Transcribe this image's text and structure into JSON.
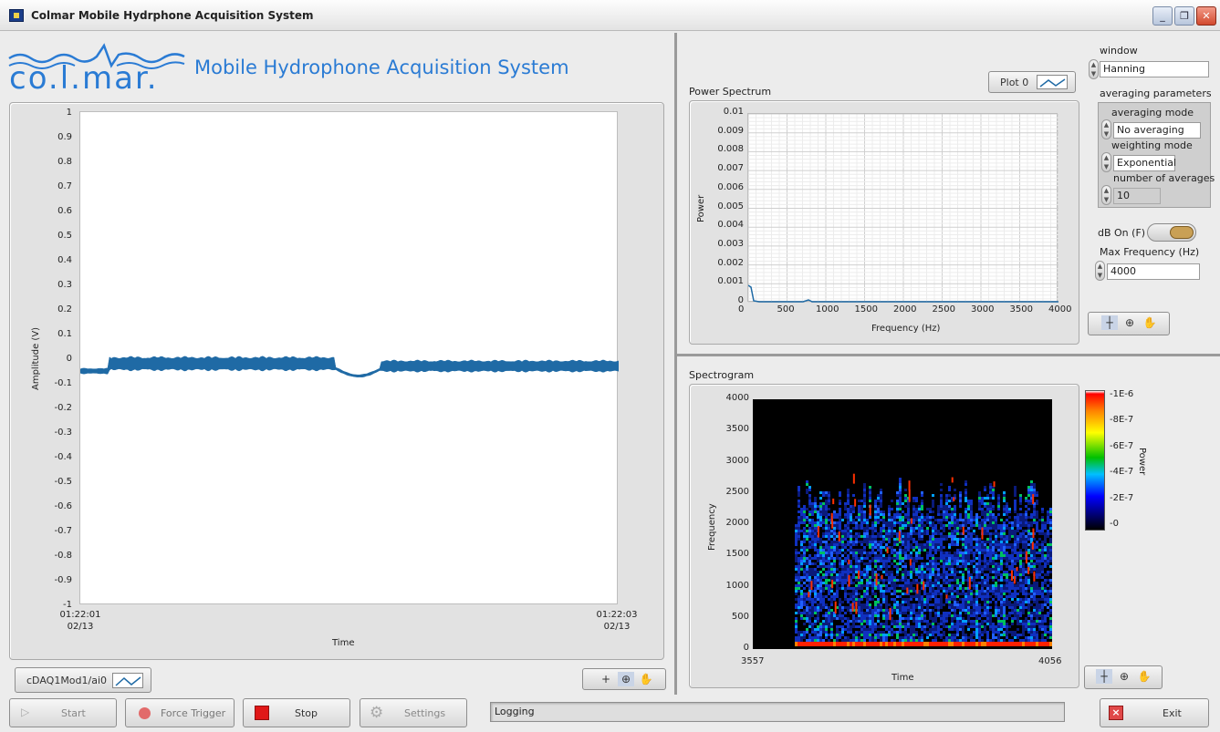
{
  "window": {
    "title": "Colmar Mobile Hydrphone Acquisition System",
    "controls": [
      "minimize",
      "restore",
      "close"
    ]
  },
  "header": {
    "logo_text": "co.l.mar.",
    "app_name": "Mobile Hydrophone Acquisition System"
  },
  "time_graph": {
    "ylabel": "Amplitude (V)",
    "xlabel": "Time",
    "y_ticks": [
      "1",
      "0.9",
      "0.8",
      "0.7",
      "0.6",
      "0.5",
      "0.4",
      "0.3",
      "0.2",
      "0.1",
      "0",
      "-0.1",
      "-0.2",
      "-0.3",
      "-0.4",
      "-0.5",
      "-0.6",
      "-0.7",
      "-0.8",
      "-0.9",
      "-1"
    ],
    "x_start": "01:22:01",
    "x_start_date": "02/13",
    "x_end": "01:22:03",
    "x_end_date": "02/13",
    "legend_channel": "cDAQ1Mod1/ai0"
  },
  "power_spectrum": {
    "title": "Power Spectrum",
    "legend_plot": "Plot 0",
    "ylabel": "Power",
    "xlabel": "Frequency (Hz)",
    "y_ticks": [
      "0.01",
      "0.009",
      "0.008",
      "0.007",
      "0.006",
      "0.005",
      "0.004",
      "0.003",
      "0.002",
      "0.001",
      "0"
    ],
    "x_ticks": [
      "0",
      "500",
      "1000",
      "1500",
      "2000",
      "2500",
      "3000",
      "3500",
      "4000"
    ]
  },
  "settings": {
    "window_label": "window",
    "window_value": "Hanning",
    "averaging_params_label": "averaging parameters",
    "averaging_mode_label": "averaging mode",
    "averaging_mode_value": "No averaging",
    "weighting_mode_label": "weighting mode",
    "weighting_mode_value": "Exponential",
    "num_averages_label": "number of averages",
    "num_averages_value": "10",
    "db_on_label": "dB On (F)",
    "max_freq_label": "Max Frequency (Hz)",
    "max_freq_value": "4000"
  },
  "spectrogram": {
    "title": "Spectrogram",
    "ylabel": "Frequency",
    "xlabel": "Time",
    "y_ticks": [
      "4000",
      "3500",
      "3000",
      "2500",
      "2000",
      "1500",
      "1000",
      "500",
      "0"
    ],
    "x_start": "3557",
    "x_end": "4056",
    "colorbar_label": "Power",
    "colorbar_ticks": [
      "-1E-6",
      "-8E-7",
      "-6E-7",
      "-4E-7",
      "-2E-7",
      "-0"
    ]
  },
  "bottom_bar": {
    "start_label": "Start",
    "force_trigger_label": "Force Trigger",
    "stop_label": "Stop",
    "settings_label": "Settings",
    "status_text": "Logging",
    "exit_label": "Exit"
  },
  "colors": {
    "waveform": "#1f6aa5",
    "logo_blue": "#2a7bd4",
    "stop_red": "#e01818",
    "toggle_gold": "#c9a055"
  }
}
